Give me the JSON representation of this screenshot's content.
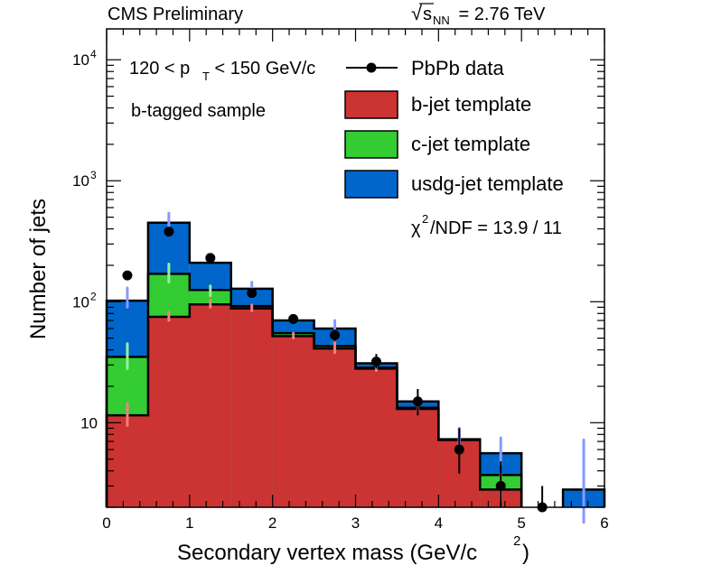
{
  "chart_data": {
    "type": "bar",
    "stacked": true,
    "log_y": true,
    "header_left": "CMS Preliminary",
    "header_right": {
      "sqrt": "√",
      "s": "s",
      "sub": "NN",
      "rest": " = 2.76 TeV"
    },
    "xlabel": {
      "main": "Secondary vertex mass (GeV/c",
      "sup": "2",
      "close": ")"
    },
    "ylabel": "Number of jets",
    "xlim": [
      0,
      6
    ],
    "ylim": [
      2,
      18000
    ],
    "x_ticks": [
      "0",
      "1",
      "2",
      "3",
      "4",
      "5",
      "6"
    ],
    "y_ticks": [
      {
        "value": 10,
        "base": "10",
        "exp": ""
      },
      {
        "value": 100,
        "base": "10",
        "exp": "2"
      },
      {
        "value": 1000,
        "base": "10",
        "exp": "3"
      },
      {
        "value": 10000,
        "base": "10",
        "exp": "4"
      }
    ],
    "bins": [
      [
        0,
        0.5
      ],
      [
        0.5,
        1.0
      ],
      [
        1.0,
        1.5
      ],
      [
        1.5,
        2.0
      ],
      [
        2.0,
        2.5
      ],
      [
        2.5,
        3.0
      ],
      [
        3.0,
        3.5
      ],
      [
        3.5,
        4.0
      ],
      [
        4.0,
        4.5
      ],
      [
        4.5,
        5.0
      ],
      [
        5.0,
        5.5
      ],
      [
        5.5,
        6.0
      ]
    ],
    "series": [
      {
        "name": "b-jet template",
        "color": "#cc3333",
        "err_color": "#f08080",
        "cumulative": [
          11.5,
          75,
          95,
          88,
          52,
          41,
          28,
          13,
          7.2,
          2.8,
          null,
          null
        ],
        "errors": [
          [
            9.5,
            14.5
          ],
          [
            70,
            82
          ],
          [
            90,
            103
          ],
          [
            84,
            94
          ],
          [
            50,
            55
          ],
          [
            38,
            48
          ],
          [
            27,
            30
          ],
          [
            12.5,
            13.8
          ],
          [
            6.5,
            9
          ],
          [
            2.3,
            3.8
          ],
          null,
          null
        ]
      },
      {
        "name": "c-jet template",
        "color": "#33cc33",
        "err_color": "#99ee99",
        "cumulative": [
          35,
          170,
          125,
          92,
          55,
          43,
          28.5,
          13.3,
          7.2,
          3.7,
          null,
          null
        ],
        "errors": [
          [
            28,
            45
          ],
          [
            145,
            205
          ],
          [
            112,
            135
          ],
          null,
          null,
          null,
          null,
          null,
          null,
          null,
          null,
          null
        ]
      },
      {
        "name": "usdg-jet template",
        "color": "#0066cc",
        "err_color": "#8899ff",
        "cumulative": [
          102,
          450,
          210,
          128,
          70,
          60,
          31,
          15,
          7.3,
          5.6,
          null,
          2.8
        ],
        "errors": [
          [
            90,
            130
          ],
          [
            380,
            540
          ],
          null,
          [
            110,
            145
          ],
          null,
          [
            55,
            70
          ],
          [
            29,
            34
          ],
          null,
          [
            6,
            9
          ],
          [
            4.5,
            7.5
          ],
          null,
          [
            1.5,
            7.2
          ]
        ]
      }
    ],
    "data_points": {
      "name": "PbPb data",
      "x": [
        0.25,
        0.75,
        1.25,
        1.75,
        2.25,
        2.75,
        3.25,
        3.75,
        4.25,
        4.75,
        5.25,
        5.75
      ],
      "y": [
        165,
        380,
        230,
        118,
        72,
        53,
        32,
        15,
        6,
        3,
        2,
        null
      ],
      "err_low": [
        null,
        null,
        null,
        10,
        5,
        6,
        4,
        3.5,
        2.2,
        1.2,
        1,
        null
      ],
      "err_high": [
        null,
        null,
        null,
        10,
        5,
        6,
        5,
        4,
        3,
        1.8,
        1,
        null
      ]
    },
    "annotations": [
      {
        "key": "pt_cut",
        "parts": [
          "120 < p",
          "T",
          " < 150 GeV/c"
        ]
      },
      {
        "key": "sample",
        "text": "b-tagged sample"
      },
      {
        "key": "chi2",
        "parts": [
          "χ",
          "2",
          "/NDF = 13.9 / 11"
        ]
      }
    ],
    "legend_position": "top-right"
  }
}
